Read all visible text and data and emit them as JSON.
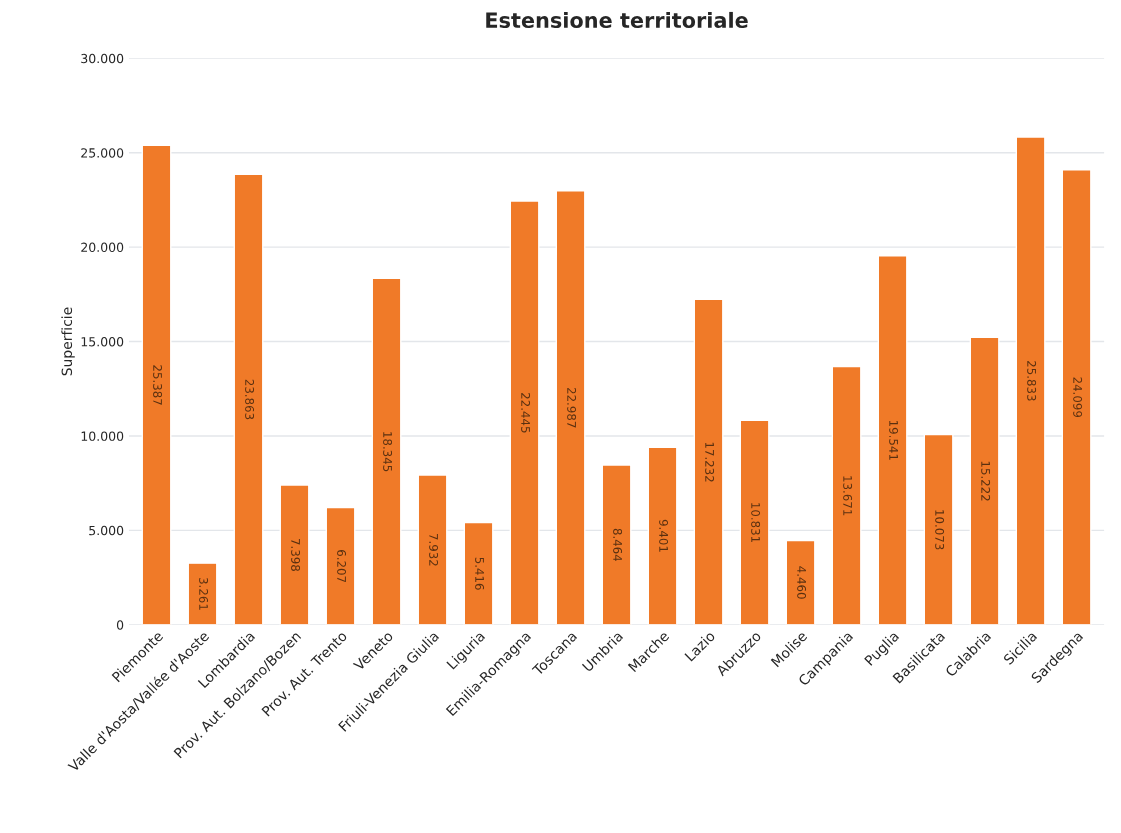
{
  "chart_data": {
    "type": "bar",
    "title": "Estensione territoriale",
    "ylabel": "Superficie",
    "categories": [
      "Piemonte",
      "Valle d'Aosta/Vallée d'Aoste",
      "Lombardia",
      "Prov. Aut. Bolzano/Bozen",
      "Prov. Aut. Trento",
      "Veneto",
      "Friuli-Venezia Giulia",
      "Liguria",
      "Emilia-Romagna",
      "Toscana",
      "Umbria",
      "Marche",
      "Lazio",
      "Abruzzo",
      "Molise",
      "Campania",
      "Puglia",
      "Basilicata",
      "Calabria",
      "Sicilia",
      "Sardegna"
    ],
    "values": [
      25387,
      3261,
      23863,
      7398,
      6207,
      18345,
      7932,
      5416,
      22445,
      22987,
      8464,
      9401,
      17232,
      10831,
      4460,
      13671,
      19541,
      10073,
      15222,
      25833,
      24099
    ],
    "value_labels": [
      "25.387",
      "3.261",
      "23.863",
      "7.398",
      "6.207",
      "18.345",
      "7.932",
      "5.416",
      "22.445",
      "22.987",
      "8.464",
      "9.401",
      "17.232",
      "10.831",
      "4.460",
      "13.671",
      "19.541",
      "10.073",
      "15.222",
      "25.833",
      "24.099"
    ],
    "color": "#f07a28",
    "ylim": [
      0,
      30000
    ],
    "yticks": [
      {
        "value": 0,
        "label": "0"
      },
      {
        "value": 5000,
        "label": "5.000"
      },
      {
        "value": 10000,
        "label": "10.000"
      },
      {
        "value": 15000,
        "label": "15.000"
      },
      {
        "value": 20000,
        "label": "20.000"
      },
      {
        "value": 25000,
        "label": "25.000"
      },
      {
        "value": 30000,
        "label": "30.000"
      }
    ],
    "grid": "y"
  }
}
